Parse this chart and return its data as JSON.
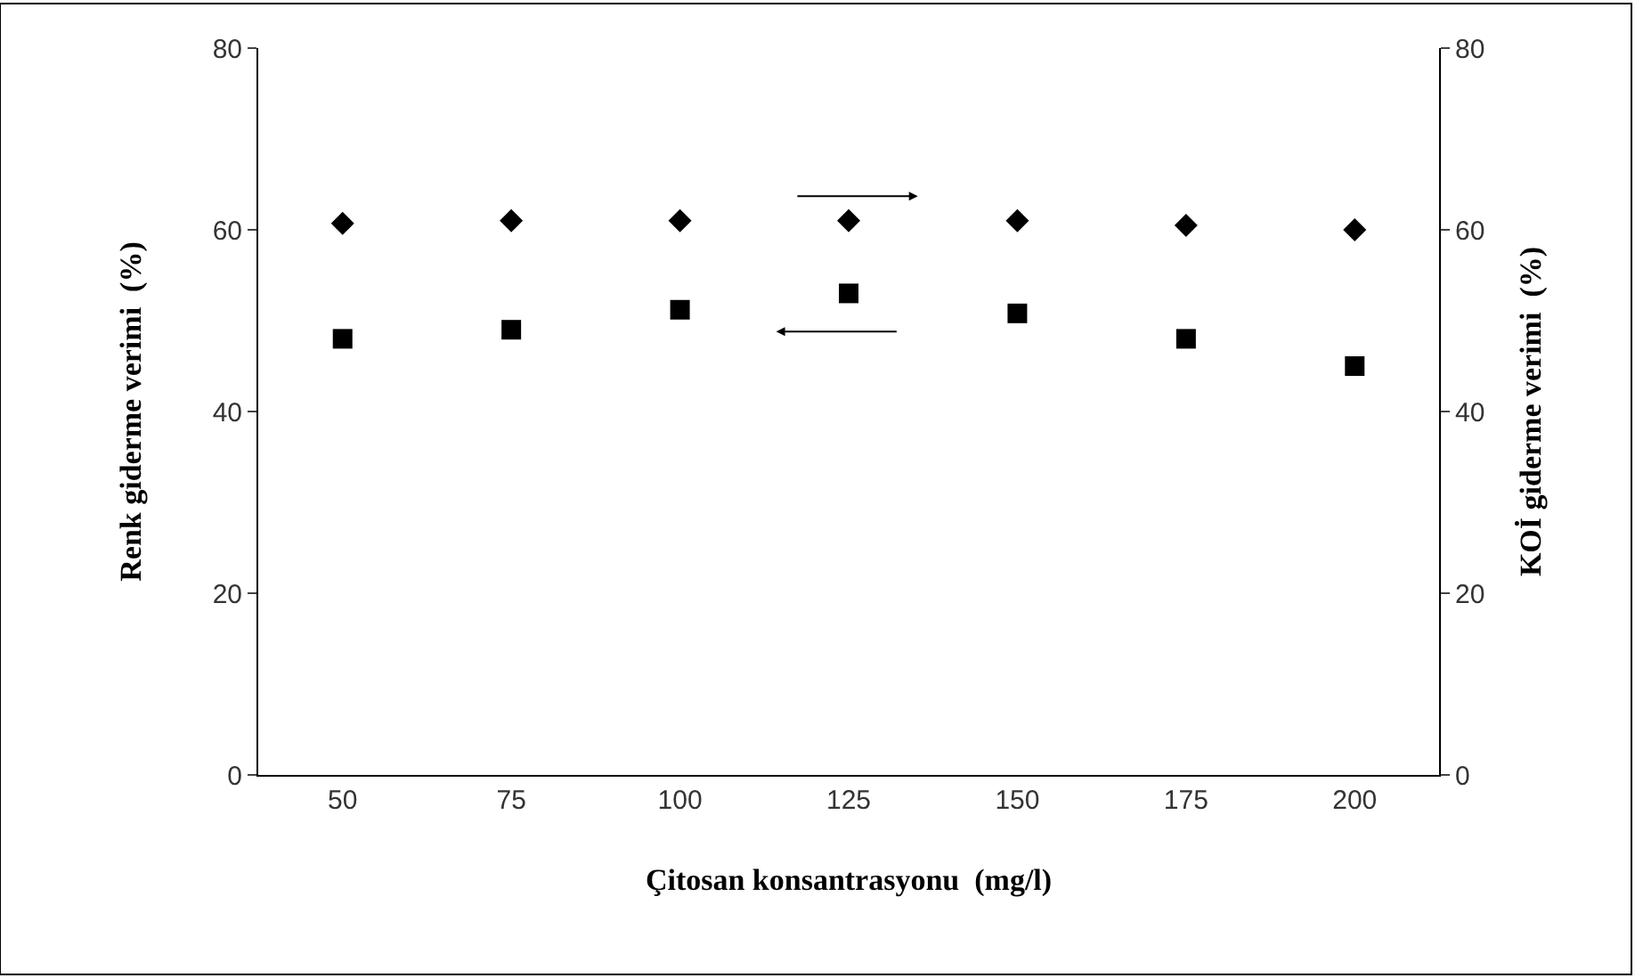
{
  "chart_data": {
    "type": "scatter",
    "xlabel": "Çitosan konsantrasyonu  (mg/l)",
    "ylabel": "Renk giderme verimi  (%)",
    "y2label": "KOİ giderme verimi  (%)",
    "categories": [
      "50",
      "75",
      "100",
      "125",
      "150",
      "175",
      "200"
    ],
    "series": [
      {
        "color": "#000000",
        "marker": "diamond",
        "axis": "y2",
        "values": [
          60.7,
          61,
          61,
          61,
          61,
          60.5,
          60
        ]
      },
      {
        "color": "#000000",
        "marker": "square",
        "values": [
          48,
          49,
          51.2,
          53,
          50.8,
          48,
          45
        ]
      }
    ],
    "ylim": [
      0,
      80
    ],
    "yticks": [
      0,
      20,
      40,
      60,
      80
    ],
    "y2lim": [
      0,
      80
    ],
    "y2ticks": [
      0,
      20,
      40,
      60,
      80
    ],
    "legend": false
  }
}
